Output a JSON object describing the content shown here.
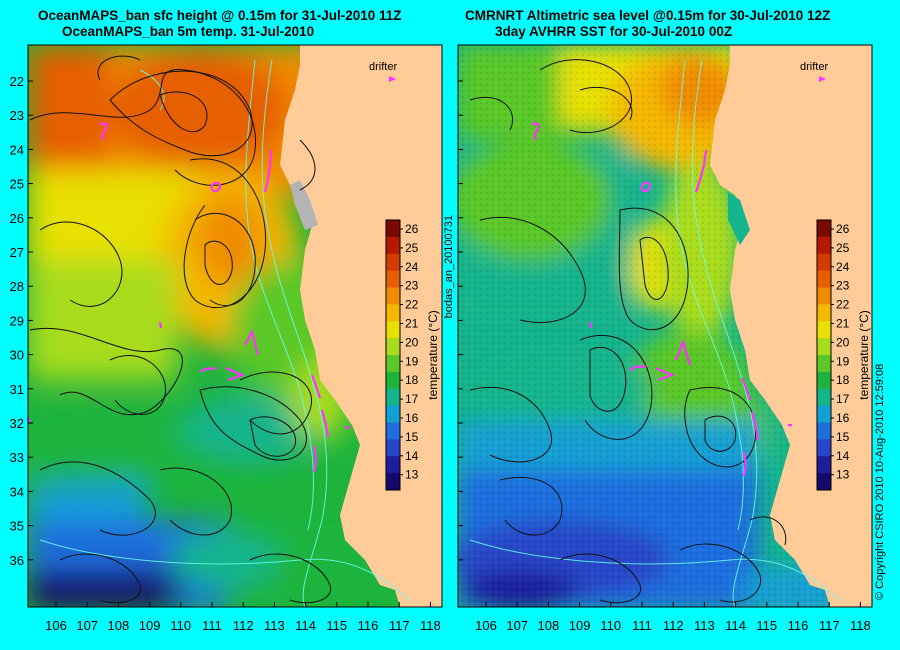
{
  "left_panel": {
    "title_line1": "OceanMAPS_ban sfc height @ 0.15m for 31-Jul-2010 11Z",
    "title_line2": "OceanMAPS_ban 5m temp. 31-Jul-2010",
    "drifter_label": "drifter"
  },
  "right_panel": {
    "title_line1": "CMRNRT Altimetric sea level  @0.15m  for 30-Jul-2010 12Z",
    "title_line2": "3day AVHRR SST for 30-Jul-2010 00Z",
    "drifter_label": "drifter"
  },
  "axes": {
    "lat_labels": [
      "22",
      "23",
      "24",
      "25",
      "26",
      "27",
      "28",
      "29",
      "30",
      "31",
      "32",
      "33",
      "34",
      "35",
      "36"
    ],
    "lon_labels": [
      "106",
      "107",
      "108",
      "109",
      "110",
      "111",
      "112",
      "113",
      "114",
      "115",
      "116",
      "117",
      "118"
    ]
  },
  "colorbar": {
    "ticks": [
      "26",
      "25",
      "24",
      "23",
      "22",
      "21",
      "20",
      "19",
      "18",
      "17",
      "16",
      "15",
      "14",
      "13"
    ],
    "label": "temperature (°C)",
    "colors": [
      "#7a0a00",
      "#b51a00",
      "#d23c00",
      "#e65e00",
      "#f08c00",
      "#f4b800",
      "#e8e000",
      "#a8dc1e",
      "#5ac828",
      "#1eb43c",
      "#14b48c",
      "#12a0d2",
      "#1e6ede",
      "#2846c8",
      "#1e1e9a",
      "#140a6e"
    ]
  },
  "side_text": {
    "vertical_left": "bodas_an_20100731",
    "vertical_right": "© Copyright CSIRO 2010   10-Aug-2010 12:59:08"
  },
  "colors": {
    "background": "#00ffff",
    "land": "#ffcc99",
    "drifter": "#ff33ff",
    "contour": "#111111"
  }
}
